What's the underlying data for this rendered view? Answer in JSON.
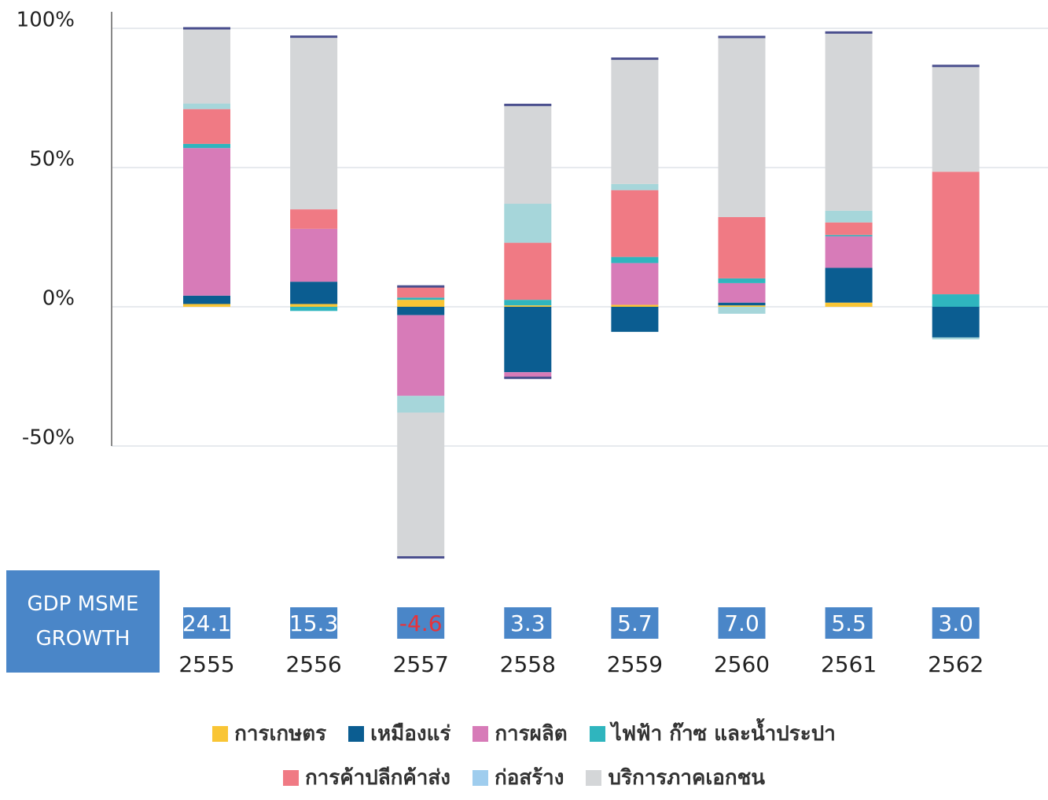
{
  "chart_data": {
    "type": "stacked_bar",
    "categories": [
      "2555",
      "2556",
      "2557",
      "2558",
      "2559",
      "2560",
      "2561",
      "2562"
    ],
    "series": [
      {
        "name": "การเกษตร",
        "color": "#f9c535",
        "values": [
          1,
          1,
          2.5,
          0.5,
          0.7,
          0.5,
          1.5,
          0
        ]
      },
      {
        "name": "เหมืองแร่",
        "color": "#0b5d91",
        "values": [
          3,
          8,
          -3,
          -23.5,
          -9,
          1,
          12.5,
          -11
        ]
      },
      {
        "name": "การผลิต",
        "color": "#d77bb8",
        "values": [
          53,
          19,
          -29,
          -2,
          15,
          7,
          11.3,
          0
        ]
      },
      {
        "name": "ไฟฟ้า ก๊าซ และน้ำประปา",
        "color": "#2fb5be",
        "values": [
          1.5,
          -1.5,
          0.8,
          2,
          2.2,
          1.7,
          0.5,
          4.5
        ]
      },
      {
        "name": "การค้าปลีกค้าส่ง",
        "color": "#f07a84",
        "values": [
          12.5,
          7,
          4,
          20.5,
          24,
          22,
          4.5,
          44
        ]
      },
      {
        "name": "ก่อสร้าง",
        "color": "#a6d6da",
        "values": [
          2,
          0,
          -6,
          14,
          2.2,
          -2.5,
          4.2,
          -0.7
        ]
      },
      {
        "name": "บริการภาคเอกชน",
        "color": "#d4d6d8",
        "values": [
          27,
          62,
          -52,
          35.5,
          45,
          64.7,
          64,
          38
        ]
      }
    ],
    "ylim": [
      -90,
      100
    ],
    "yticks": [
      {
        "value": 100,
        "label": "100%"
      },
      {
        "value": 50,
        "label": "50%"
      },
      {
        "value": 0,
        "label": "0%"
      },
      {
        "value": -50,
        "label": "-50%"
      }
    ],
    "grid": true,
    "growth_label": "GDP MSME GROWTH",
    "growth_values": [
      "24.1",
      "15.3",
      "-4.6",
      "3.3",
      "5.7",
      "7.0",
      "5.5",
      "3.0"
    ],
    "growth_color": "#4a86c8",
    "negative_color": "#e8333a"
  }
}
